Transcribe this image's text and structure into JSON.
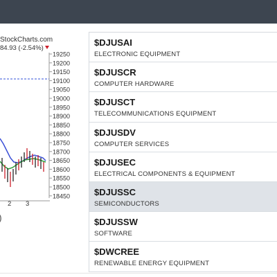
{
  "chart": {
    "source": "StockCharts.com",
    "change_text": "84.93 (-2.54%)",
    "y_ticks": [
      "19250",
      "19200",
      "19150",
      "19100",
      "19050",
      "19000",
      "18950",
      "18900",
      "18850",
      "18800",
      "18750",
      "18700",
      "18650",
      "18600",
      "18550",
      "18500",
      "18450"
    ],
    "x_ticks": [
      "2",
      "3"
    ],
    "indicator_paren": ")",
    "colors": {
      "up": "#222222",
      "down": "#cc1f2b",
      "ma_blue": "#3a4fd6",
      "ma_green": "#2e9e3a",
      "ref_line": "#3050d8"
    }
  },
  "list": {
    "items": [
      {
        "symbol": "$DJUSAI",
        "description": "ELECTRONIC EQUIPMENT",
        "selected": false
      },
      {
        "symbol": "$DJUSCR",
        "description": "COMPUTER HARDWARE",
        "selected": false
      },
      {
        "symbol": "$DJUSCT",
        "description": "TELECOMMUNICATIONS EQUIPMENT",
        "selected": false
      },
      {
        "symbol": "$DJUSDV",
        "description": "COMPUTER SERVICES",
        "selected": false
      },
      {
        "symbol": "$DJUSEC",
        "description": "ELECTRICAL COMPONENTS & EQUIPMENT",
        "selected": false
      },
      {
        "symbol": "$DJUSSC",
        "description": "SEMICONDUCTORS",
        "selected": true
      },
      {
        "symbol": "$DJUSSW",
        "description": "SOFTWARE",
        "selected": false
      },
      {
        "symbol": "$DWCREE",
        "description": "RENEWABLE ENERGY EQUIPMENT",
        "selected": false
      }
    ]
  }
}
